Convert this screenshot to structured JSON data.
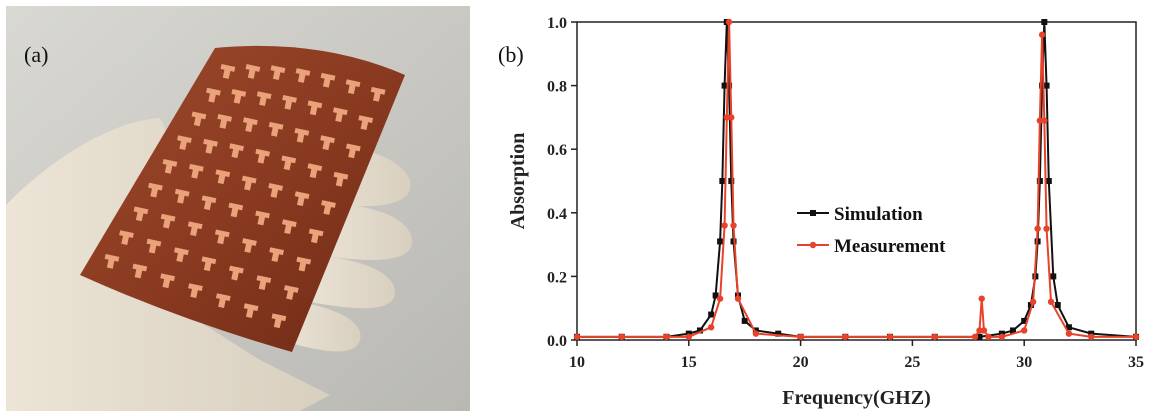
{
  "photo": {
    "label": "(a)"
  },
  "chart_data": {
    "type": "line",
    "panel_label": "(b)",
    "x_label": "Frequency(GHZ)",
    "y_label": "Absorption",
    "xlim": [
      10,
      35
    ],
    "ylim": [
      0,
      1
    ],
    "xticks": [
      10,
      15,
      20,
      25,
      30,
      35
    ],
    "yticks": [
      {
        "value": 0,
        "label": "0.0"
      },
      0.2,
      0.4,
      0.6,
      0.8,
      {
        "value": 1,
        "label": "1.0"
      }
    ],
    "grid": false,
    "series": [
      {
        "name": "Simulation",
        "color": "#111111",
        "marker": "square",
        "x": [
          10,
          12,
          14,
          15,
          15.5,
          16,
          16.2,
          16.4,
          16.5,
          16.6,
          16.7,
          16.8,
          16.9,
          17.0,
          17.2,
          17.5,
          18,
          19,
          20,
          22,
          24,
          26,
          28,
          29,
          29.5,
          30,
          30.3,
          30.5,
          30.6,
          30.7,
          30.8,
          30.9,
          31.0,
          31.1,
          31.3,
          31.5,
          32,
          33,
          35
        ],
        "values": [
          0.01,
          0.01,
          0.01,
          0.02,
          0.03,
          0.08,
          0.14,
          0.31,
          0.5,
          0.8,
          1.0,
          0.8,
          0.5,
          0.31,
          0.14,
          0.06,
          0.03,
          0.02,
          0.01,
          0.01,
          0.01,
          0.01,
          0.01,
          0.02,
          0.03,
          0.06,
          0.11,
          0.2,
          0.31,
          0.5,
          0.8,
          1.0,
          0.8,
          0.5,
          0.2,
          0.11,
          0.04,
          0.02,
          0.01
        ]
      },
      {
        "name": "Measurement",
        "color": "#e8432a",
        "marker": "circle",
        "x": [
          10,
          12,
          14,
          15,
          16,
          16.4,
          16.6,
          16.7,
          16.8,
          16.9,
          17.0,
          17.2,
          18,
          20,
          22,
          24,
          26,
          27.8,
          28.0,
          28.1,
          28.2,
          28.4,
          29,
          30,
          30.4,
          30.6,
          30.7,
          30.8,
          30.9,
          31.0,
          31.2,
          32,
          33,
          35
        ],
        "values": [
          0.01,
          0.01,
          0.01,
          0.01,
          0.04,
          0.13,
          0.36,
          0.7,
          1.0,
          0.7,
          0.36,
          0.13,
          0.02,
          0.01,
          0.01,
          0.01,
          0.01,
          0.01,
          0.03,
          0.13,
          0.03,
          0.01,
          0.01,
          0.03,
          0.12,
          0.35,
          0.69,
          0.96,
          0.69,
          0.35,
          0.12,
          0.02,
          0.01,
          0.01
        ]
      }
    ]
  }
}
